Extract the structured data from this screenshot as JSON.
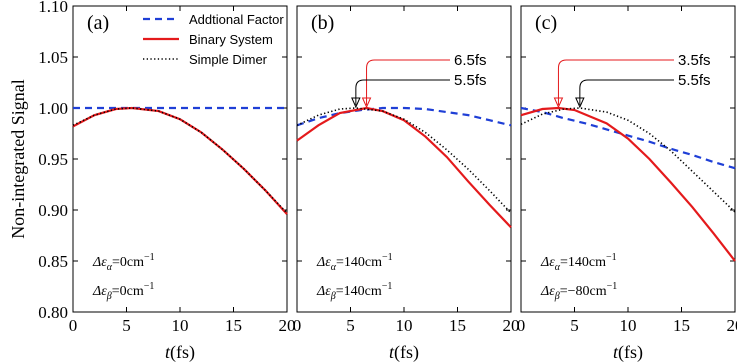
{
  "chart_data": {
    "type": "line",
    "ylabel": "Non-integrated Signal",
    "xlabel": "t(fs)",
    "xlim": [
      0,
      20
    ],
    "ylim": [
      0.8,
      1.1
    ],
    "xticks": [
      0,
      5,
      10,
      15,
      20
    ],
    "yticks": [
      "0.80",
      "0.85",
      "0.90",
      "0.95",
      "1.00",
      "1.05",
      "1.10"
    ],
    "legend": {
      "placement": "top-right of panel (a)",
      "entries": [
        {
          "label": "Addtional Factor",
          "color": "#1f3fd6",
          "style": "dashed"
        },
        {
          "label": "Binary System",
          "color": "#e41a1c",
          "style": "solid"
        },
        {
          "label": "Simple Dimer",
          "color": "#000000",
          "style": "dotted"
        }
      ]
    },
    "panels": [
      {
        "label": "(a)",
        "param1": {
          "prefix": "Δε",
          "sub": "α",
          "value": "=0cm",
          "sup": "−1"
        },
        "param2": {
          "prefix": "Δε",
          "sub": "β",
          "value": "=0cm",
          "sup": "−1"
        },
        "annotations": [],
        "series": [
          {
            "name": "Addtional Factor",
            "x": [
              0,
              5,
              10,
              15,
              20
            ],
            "values": [
              1.0,
              1.0,
              1.0,
              1.0,
              1.0
            ]
          },
          {
            "name": "Binary System",
            "x": [
              0,
              2,
              4,
              5.5,
              8,
              10,
              12,
              14,
              16,
              18,
              20
            ],
            "values": [
              0.982,
              0.993,
              0.999,
              1.0,
              0.997,
              0.989,
              0.976,
              0.959,
              0.94,
              0.919,
              0.896
            ]
          },
          {
            "name": "Simple Dimer",
            "x": [
              0,
              2,
              4,
              5.5,
              8,
              10,
              12,
              14,
              16,
              18,
              20
            ],
            "values": [
              0.983,
              0.993,
              0.999,
              1.0,
              0.997,
              0.989,
              0.976,
              0.959,
              0.94,
              0.919,
              0.897
            ]
          }
        ]
      },
      {
        "label": "(b)",
        "param1": {
          "prefix": "Δε",
          "sub": "α",
          "value": "=140cm",
          "sup": "−1"
        },
        "param2": {
          "prefix": "Δε",
          "sub": "β",
          "value": "=140cm",
          "sup": "−1"
        },
        "annotations": [
          {
            "text": "6.5fs",
            "x": 6.5,
            "color": "#e41a1c"
          },
          {
            "text": "5.5fs",
            "x": 5.5,
            "color": "#000000"
          }
        ],
        "series": [
          {
            "name": "Addtional Factor",
            "x": [
              0,
              2,
              4,
              6,
              8,
              10,
              12,
              14,
              16,
              18,
              20
            ],
            "values": [
              0.983,
              0.99,
              0.995,
              0.998,
              1.0,
              1.0,
              0.999,
              0.996,
              0.993,
              0.988,
              0.983
            ]
          },
          {
            "name": "Binary System",
            "x": [
              0,
              2,
              4,
              6.5,
              8,
              10,
              12,
              14,
              16,
              18,
              20
            ],
            "values": [
              0.968,
              0.983,
              0.995,
              1.0,
              0.997,
              0.988,
              0.972,
              0.952,
              0.928,
              0.905,
              0.883
            ]
          },
          {
            "name": "Simple Dimer",
            "x": [
              0,
              2,
              4,
              5.5,
              8,
              10,
              12,
              14,
              16,
              18,
              20
            ],
            "values": [
              0.983,
              0.993,
              0.999,
              1.0,
              0.997,
              0.989,
              0.976,
              0.959,
              0.94,
              0.919,
              0.897
            ]
          }
        ]
      },
      {
        "label": "(c)",
        "param1": {
          "prefix": "Δε",
          "sub": "α",
          "value": "=140cm",
          "sup": "−1"
        },
        "param2": {
          "prefix": "Δε",
          "sub": "β",
          "value": "=−80cm",
          "sup": "−1"
        },
        "annotations": [
          {
            "text": "3.5fs",
            "x": 3.5,
            "color": "#e41a1c"
          },
          {
            "text": "5.5fs",
            "x": 5.5,
            "color": "#000000"
          }
        ],
        "series": [
          {
            "name": "Addtional Factor",
            "x": [
              0,
              2,
              4,
              6,
              8,
              10,
              12,
              14,
              16,
              18,
              20
            ],
            "values": [
              1.0,
              0.996,
              0.99,
              0.985,
              0.979,
              0.973,
              0.967,
              0.96,
              0.954,
              0.947,
              0.941
            ]
          },
          {
            "name": "Binary System",
            "x": [
              0,
              2,
              3.5,
              5,
              8,
              10,
              12,
              14,
              16,
              18,
              20
            ],
            "values": [
              0.993,
              0.999,
              1.0,
              0.998,
              0.985,
              0.97,
              0.95,
              0.927,
              0.903,
              0.877,
              0.85
            ]
          },
          {
            "name": "Simple Dimer",
            "x": [
              0,
              2,
              4,
              5.5,
              8,
              10,
              12,
              14,
              16,
              18,
              20
            ],
            "values": [
              0.984,
              0.994,
              0.999,
              1.0,
              0.996,
              0.988,
              0.975,
              0.958,
              0.938,
              0.918,
              0.898
            ]
          }
        ]
      }
    ]
  }
}
